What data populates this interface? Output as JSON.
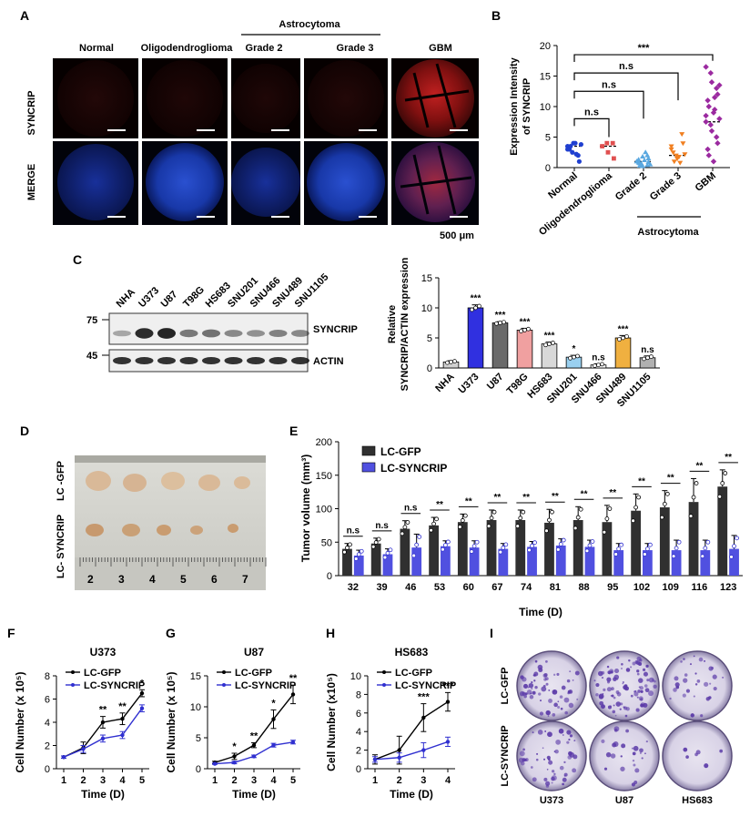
{
  "panel_letters": {
    "a": "A",
    "b": "B",
    "c": "C",
    "d": "D",
    "e": "E",
    "f": "F",
    "g": "G",
    "h": "H",
    "i": "I"
  },
  "panelA": {
    "group_label": "Astrocytoma",
    "columns": [
      "Normal",
      "Oligodendroglioma",
      "Grade 2",
      "Grade 3",
      "GBM"
    ],
    "rows": [
      "SYNCRIP",
      "MERGE"
    ],
    "scale_bar": "500 μm"
  },
  "panelC_blot": {
    "lanes": [
      "NHA",
      "U373",
      "U87",
      "T98G",
      "HS683",
      "SNU201",
      "SNU466",
      "SNU489",
      "SNU1105"
    ],
    "markers": [
      "75",
      "45"
    ],
    "bands": [
      "SYNCRIP",
      "ACTIN"
    ]
  },
  "panelD": {
    "rows": [
      "LC -GFP",
      "LC- SYNCRIP"
    ],
    "ruler": [
      "2",
      "3",
      "4",
      "5",
      "6",
      "7"
    ]
  },
  "panelI": {
    "rows": [
      "LC-GFP",
      "LC-SYNCRIP"
    ],
    "cols": [
      "U373",
      "U87",
      "HS683"
    ]
  },
  "chart_data": [
    {
      "id": "B",
      "type": "scatter",
      "ylabel": "Expression Intensity of SYNCRIP",
      "categories": [
        "Normal",
        "Oligodendroglioma",
        "Grade 2",
        "Grade 3",
        "GBM"
      ],
      "group_label": "Astrocytoma",
      "ylim": [
        0,
        20
      ],
      "yticks": [
        0,
        5,
        10,
        15,
        20
      ],
      "colors": [
        "#1f3fd0",
        "#e05050",
        "#5aa8e0",
        "#f07f20",
        "#9b2aa0"
      ],
      "medians": [
        3.5,
        3.5,
        1,
        2,
        7.5
      ],
      "points": [
        [
          3.5,
          2.5,
          4,
          2,
          1,
          3,
          3.5,
          4,
          2.2,
          3.8,
          3
        ],
        [
          3.5,
          4,
          2.5,
          4,
          1.5
        ],
        [
          1,
          0.5,
          0.2,
          2,
          1.5,
          0.8,
          0.3,
          1.2,
          2.5,
          0.5,
          1,
          0.6,
          1.8,
          0.4,
          0.9,
          1.3,
          0.7
        ],
        [
          3,
          2,
          1.5,
          5.5,
          4,
          2.5,
          1,
          1.8,
          0.8,
          2.2,
          3.5
        ],
        [
          16.5,
          15.5,
          14,
          13,
          12,
          11,
          10,
          9,
          9.5,
          8,
          7.5,
          7,
          6,
          5,
          4,
          3,
          2,
          1,
          11.5,
          13.5,
          8.5
        ]
      ],
      "brackets": [
        {
          "from": 0,
          "to": 4,
          "label": "***",
          "y": 18.5
        },
        {
          "from": 0,
          "to": 3,
          "label": "n.s",
          "y": 15.5
        },
        {
          "from": 0,
          "to": 2,
          "label": "n.s",
          "y": 12.5
        },
        {
          "from": 0,
          "to": 1,
          "label": "n.s",
          "y": 8
        }
      ]
    },
    {
      "id": "C",
      "type": "bar",
      "ylabel": "Relative SYNCRIP/ACTIN expression",
      "categories": [
        "NHA",
        "U373",
        "U87",
        "T98G",
        "HS683",
        "SNU201",
        "SNU466",
        "SNU489",
        "SNU1105"
      ],
      "values": [
        1,
        10,
        7.5,
        6.3,
        4,
        1.8,
        0.5,
        5,
        1.7
      ],
      "errors": [
        0.2,
        0.5,
        0.2,
        0.3,
        0.3,
        0.3,
        0.2,
        0.4,
        0.3
      ],
      "colors": [
        "#d0d0d0",
        "#3030e0",
        "#6a6a6a",
        "#f0a0a0",
        "#d8d8d8",
        "#9ad0f0",
        "#ffffff",
        "#f0b040",
        "#b0b0b0"
      ],
      "sig": [
        "",
        "***",
        "***",
        "***",
        "***",
        "*",
        "n.s",
        "***",
        "n.s"
      ],
      "ylim": [
        0,
        15
      ],
      "yticks": [
        0,
        5,
        10,
        15
      ]
    },
    {
      "id": "E",
      "type": "bar",
      "xlabel": "Time (D)",
      "ylabel": "Tumor volume (mm³)",
      "categories": [
        "32",
        "39",
        "46",
        "53",
        "60",
        "67",
        "74",
        "81",
        "88",
        "95",
        "102",
        "109",
        "116",
        "123"
      ],
      "series": [
        {
          "name": "LC-GFP",
          "color": "#303030",
          "values": [
            40,
            48,
            70,
            75,
            80,
            83,
            83,
            79,
            83,
            80,
            97,
            102,
            110,
            133
          ],
          "errors": [
            8,
            8,
            12,
            12,
            12,
            15,
            15,
            20,
            20,
            25,
            25,
            25,
            35,
            25
          ]
        },
        {
          "name": "LC-SYNCRIP",
          "color": "#5050e0",
          "values": [
            30,
            32,
            42,
            44,
            42,
            40,
            43,
            45,
            43,
            38,
            38,
            38,
            38,
            40
          ],
          "errors": [
            8,
            8,
            20,
            8,
            10,
            8,
            8,
            10,
            10,
            10,
            10,
            15,
            15,
            20
          ]
        }
      ],
      "sig": [
        "n.s",
        "n.s",
        "n.s",
        "**",
        "**",
        "**",
        "**",
        "**",
        "**",
        "**",
        "**",
        "**",
        "**",
        "**"
      ],
      "ylim": [
        0,
        200
      ],
      "yticks": [
        0,
        50,
        100,
        150,
        200
      ]
    },
    {
      "id": "F",
      "type": "line",
      "title": "U373",
      "xlabel": "Time (D)",
      "ylabel": "Cell Number (x 10⁵)",
      "x": [
        1,
        2,
        3,
        4,
        5
      ],
      "series": [
        {
          "name": "LC-GFP",
          "color": "#000000",
          "values": [
            1,
            1.8,
            4,
            4.3,
            6.5
          ],
          "errors": [
            0.1,
            0.5,
            0.5,
            0.5,
            0.3
          ]
        },
        {
          "name": "LC-SYNCRIP",
          "color": "#3030d0",
          "values": [
            1,
            1.7,
            2.6,
            2.9,
            5.2
          ],
          "errors": [
            0.1,
            0.3,
            0.3,
            0.3,
            0.3
          ]
        }
      ],
      "sig": [
        "",
        "",
        "**",
        "**",
        "*"
      ],
      "ylim": [
        0,
        8
      ],
      "yticks": [
        0,
        2,
        4,
        6,
        8
      ]
    },
    {
      "id": "G",
      "type": "line",
      "title": "U87",
      "xlabel": "Time (D)",
      "ylabel": "Cell Number (x 10⁵)",
      "x": [
        1,
        2,
        3,
        4,
        5
      ],
      "series": [
        {
          "name": "LC-GFP",
          "color": "#000000",
          "values": [
            1,
            2,
            3.8,
            8,
            12
          ],
          "errors": [
            0.2,
            0.5,
            0.4,
            1.5,
            1.5
          ]
        },
        {
          "name": "LC-SYNCRIP",
          "color": "#3030d0",
          "values": [
            0.8,
            1,
            2,
            3.8,
            4.3
          ],
          "errors": [
            0.1,
            0.2,
            0.2,
            0.3,
            0.3
          ]
        }
      ],
      "sig": [
        "",
        "*",
        "**",
        "*",
        "**"
      ],
      "ylim": [
        0,
        15
      ],
      "yticks": [
        0,
        5,
        10,
        15
      ]
    },
    {
      "id": "H",
      "type": "line",
      "title": "HS683",
      "xlabel": "Time (D)",
      "ylabel": "Cell Number (x10⁵)",
      "x": [
        1,
        2,
        3,
        4
      ],
      "series": [
        {
          "name": "LC-GFP",
          "color": "#000000",
          "values": [
            1,
            2,
            5.5,
            7.2
          ],
          "errors": [
            0.5,
            1.5,
            1.5,
            1
          ]
        },
        {
          "name": "LC-SYNCRIP",
          "color": "#3030d0",
          "values": [
            1,
            1.2,
            2,
            2.9
          ],
          "errors": [
            0.3,
            0.5,
            0.8,
            0.5
          ]
        }
      ],
      "sig": [
        "",
        "",
        "***",
        "***"
      ],
      "ylim": [
        0,
        10
      ],
      "yticks": [
        0,
        2,
        4,
        6,
        8,
        10
      ]
    }
  ]
}
